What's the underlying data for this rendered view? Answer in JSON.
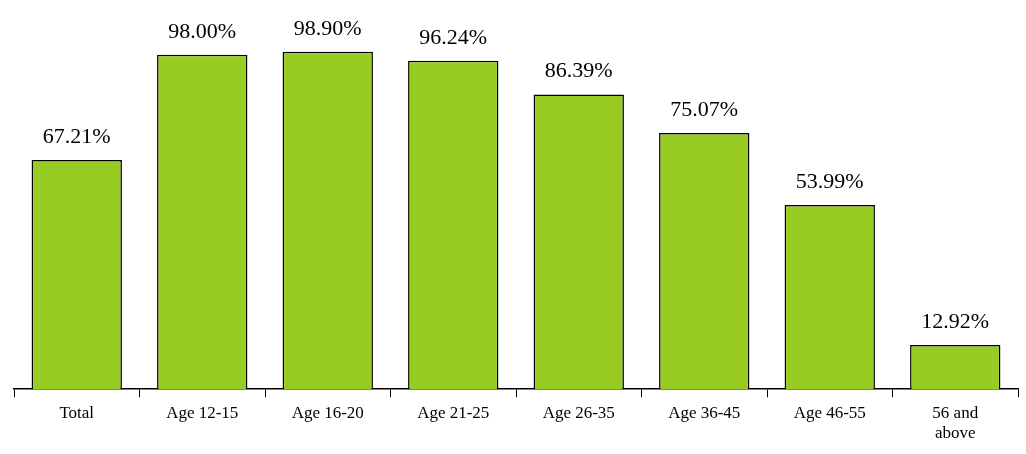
{
  "chart_data": {
    "type": "bar",
    "categories": [
      "Total",
      "Age 12-15",
      "Age 16-20",
      "Age 21-25",
      "Age 26-35",
      "Age 36-45",
      "Age 46-55",
      "56 and above"
    ],
    "values": [
      67.21,
      98.0,
      98.9,
      96.24,
      86.39,
      75.07,
      53.99,
      12.92
    ],
    "value_labels": [
      "67.21%",
      "98.00%",
      "98.90%",
      "96.24%",
      "86.39%",
      "75.07%",
      "53.99%",
      "12.92%"
    ],
    "color": "#99cc22",
    "tick_labels": "x",
    "legend": false,
    "grid": false
  }
}
